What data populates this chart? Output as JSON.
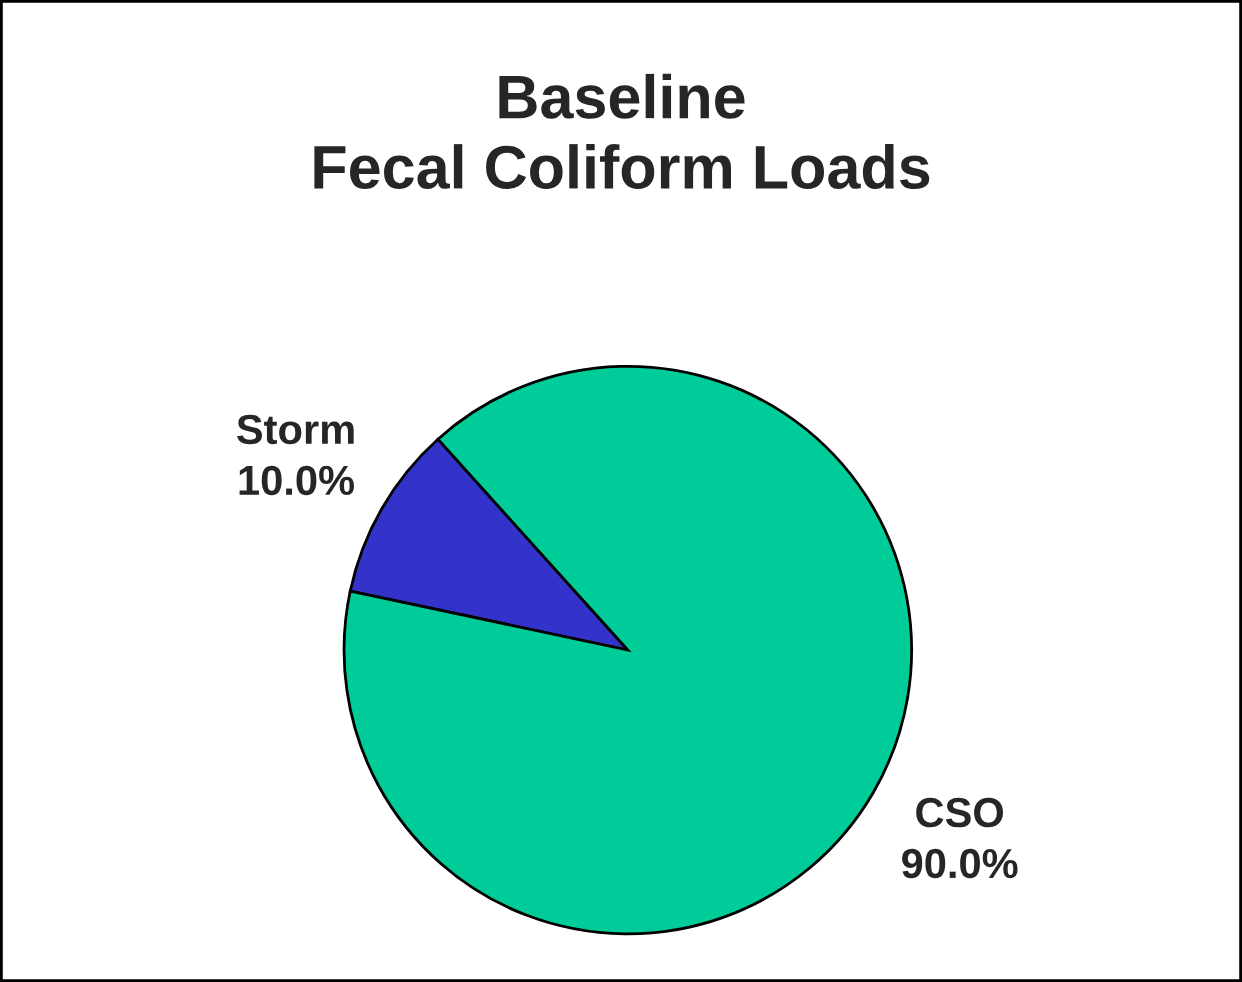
{
  "chart_data": {
    "type": "pie",
    "title": "Baseline\nFecal Coliform Loads",
    "categories": [
      "Storm",
      "CSO"
    ],
    "values": [
      10,
      90
    ],
    "colors": [
      "#3333cc",
      "#00cc99"
    ],
    "value_labels": [
      "10.0%",
      "90.0%"
    ]
  }
}
